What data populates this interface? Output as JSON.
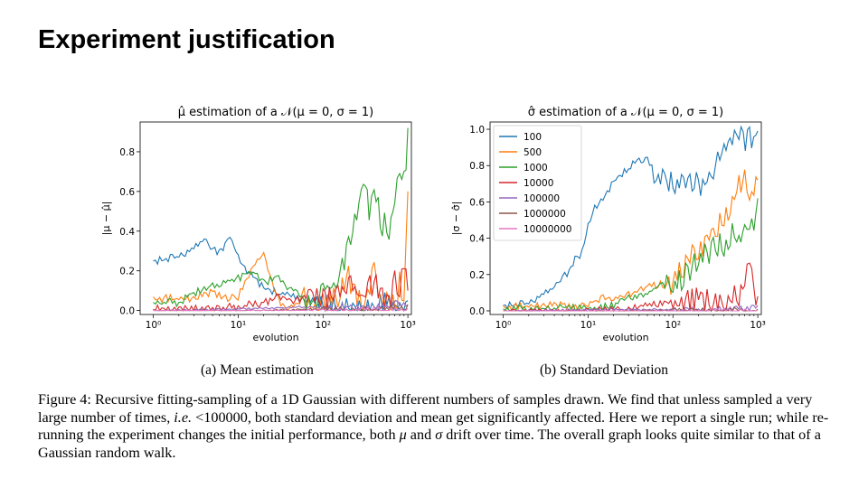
{
  "slide": {
    "title": "Experiment justification"
  },
  "subcaptions": [
    "(a) Mean estimation",
    "(b) Standard Deviation"
  ],
  "caption": {
    "label": "Figure 4:",
    "part1": "Recursive fitting-sampling of a 1D Gaussian with different numbers of samples drawn. We find that unless sampled a very large number of times,",
    "ie": "i.e.",
    "part2": "<100000, both standard deviation and mean get significantly affected. Here we report a single run; while re-running the experiment changes the initial performance, both",
    "mu": "μ",
    "and": "and",
    "sigma": "σ",
    "part3": "drift over time. The overall graph looks quite similar to that of a Gaussian random walk."
  },
  "colors": {
    "100": "#1f77b4",
    "500": "#ff7f0e",
    "1000": "#2ca02c",
    "10000": "#d62728",
    "100000": "#9467bd",
    "1000000": "#8c564b",
    "10000000": "#e377c2"
  },
  "chart_data": [
    {
      "type": "line",
      "title": "μ̂ estimation of a 𝒩(μ = 0, σ = 1)",
      "xlabel": "evolution",
      "ylabel": "|μ − μ̂|",
      "xscale": "log",
      "xlim": [
        0.7,
        1100
      ],
      "ylim": [
        -0.02,
        0.95
      ],
      "xticks": [
        1,
        10,
        100,
        1000
      ],
      "xtick_labels": [
        "10⁰",
        "10¹",
        "10²",
        "10³"
      ],
      "yticks": [
        0.0,
        0.2,
        0.4,
        0.6,
        0.8
      ],
      "ytick_labels": [
        "0.0",
        "0.2",
        "0.4",
        "0.6",
        "0.8"
      ],
      "grid": false,
      "legend": "none",
      "series": [
        {
          "name": "100",
          "x": [
            1,
            2,
            3,
            4,
            5,
            6,
            7,
            8,
            9,
            10,
            12,
            15,
            20,
            30,
            50,
            80,
            100,
            150,
            200,
            300,
            400,
            600,
            800,
            1000
          ],
          "y": [
            0.26,
            0.28,
            0.32,
            0.38,
            0.32,
            0.3,
            0.34,
            0.38,
            0.33,
            0.28,
            0.22,
            0.18,
            0.12,
            0.1,
            0.07,
            0.06,
            0.05,
            0.04,
            0.04,
            0.03,
            0.05,
            0.06,
            0.04,
            0.05
          ]
        },
        {
          "name": "500",
          "x": [
            1,
            3,
            5,
            8,
            10,
            12,
            15,
            20,
            25,
            30,
            40,
            50,
            60,
            80,
            100,
            150,
            200,
            300,
            400,
            500,
            600,
            700,
            800,
            900,
            1000
          ],
          "y": [
            0.07,
            0.07,
            0.1,
            0.07,
            0.08,
            0.15,
            0.23,
            0.3,
            0.15,
            0.06,
            0.02,
            0.04,
            0.1,
            0.02,
            0.06,
            0.12,
            0.2,
            0.06,
            0.26,
            0.05,
            0.12,
            0.02,
            0.18,
            0.05,
            0.6
          ]
        },
        {
          "name": "1000",
          "x": [
            1,
            2,
            3,
            5,
            8,
            10,
            15,
            20,
            30,
            40,
            50,
            60,
            80,
            100,
            150,
            200,
            250,
            300,
            350,
            400,
            500,
            600,
            700,
            800,
            900,
            1000
          ],
          "y": [
            0.05,
            0.05,
            0.1,
            0.13,
            0.16,
            0.17,
            0.22,
            0.15,
            0.18,
            0.12,
            0.1,
            0.06,
            0.08,
            0.15,
            0.18,
            0.35,
            0.5,
            0.68,
            0.55,
            0.62,
            0.48,
            0.45,
            0.6,
            0.75,
            0.68,
            0.92
          ]
        },
        {
          "name": "10000",
          "x": [
            1,
            5,
            10,
            20,
            30,
            50,
            80,
            100,
            150,
            200,
            300,
            400,
            500,
            600,
            700,
            800,
            900,
            1000
          ],
          "y": [
            0.02,
            0.02,
            0.03,
            0.05,
            0.08,
            0.06,
            0.12,
            0.09,
            0.12,
            0.15,
            0.1,
            0.18,
            0.12,
            0.08,
            0.2,
            0.1,
            0.26,
            0.1
          ]
        },
        {
          "name": "100000",
          "x": [
            1,
            10,
            50,
            100,
            200,
            400,
            600,
            800,
            1000
          ],
          "y": [
            0.0,
            0.01,
            0.02,
            0.02,
            0.03,
            0.03,
            0.04,
            0.05,
            0.03
          ]
        },
        {
          "name": "1000000",
          "x": [
            1,
            10,
            100,
            300,
            600,
            1000
          ],
          "y": [
            0.0,
            0.0,
            0.01,
            0.01,
            0.02,
            0.03
          ]
        },
        {
          "name": "10000000",
          "x": [
            1,
            10,
            100,
            1000
          ],
          "y": [
            0.0,
            0.0,
            0.005,
            0.01
          ]
        }
      ]
    },
    {
      "type": "line",
      "title": "σ̂ estimation of a 𝒩(μ = 0, σ = 1)",
      "xlabel": "evolution",
      "ylabel": "|σ − σ̂|",
      "xscale": "log",
      "xlim": [
        0.7,
        1100
      ],
      "ylim": [
        -0.02,
        1.04
      ],
      "xticks": [
        1,
        10,
        100,
        1000
      ],
      "xtick_labels": [
        "10⁰",
        "10¹",
        "10²",
        "10³"
      ],
      "yticks": [
        0.0,
        0.2,
        0.4,
        0.6,
        0.8,
        1.0
      ],
      "ytick_labels": [
        "0.0",
        "0.2",
        "0.4",
        "0.6",
        "0.8",
        "1.0"
      ],
      "grid": false,
      "legend": "upper-left",
      "series": [
        {
          "name": "100",
          "x": [
            1,
            2,
            3,
            4,
            5,
            6,
            7,
            8,
            9,
            10,
            12,
            15,
            20,
            30,
            40,
            50,
            60,
            80,
            100,
            150,
            200,
            300,
            400,
            500,
            600,
            800,
            1000
          ],
          "y": [
            0.04,
            0.05,
            0.1,
            0.15,
            0.2,
            0.22,
            0.3,
            0.3,
            0.38,
            0.48,
            0.58,
            0.62,
            0.72,
            0.8,
            0.84,
            0.84,
            0.8,
            0.76,
            0.74,
            0.78,
            0.72,
            0.8,
            0.92,
            0.96,
            0.98,
            0.99,
            0.99
          ]
        },
        {
          "name": "500",
          "x": [
            1,
            3,
            5,
            8,
            10,
            15,
            20,
            30,
            50,
            80,
            100,
            150,
            200,
            300,
            400,
            500,
            600,
            700,
            800,
            900,
            1000
          ],
          "y": [
            0.03,
            0.04,
            0.04,
            0.03,
            0.05,
            0.08,
            0.07,
            0.1,
            0.14,
            0.16,
            0.2,
            0.3,
            0.38,
            0.45,
            0.55,
            0.65,
            0.72,
            0.8,
            0.65,
            0.7,
            0.72
          ]
        },
        {
          "name": "1000",
          "x": [
            1,
            3,
            5,
            10,
            20,
            30,
            50,
            80,
            100,
            150,
            200,
            300,
            400,
            500,
            600,
            700,
            800,
            900,
            1000
          ],
          "y": [
            0.02,
            0.02,
            0.03,
            0.02,
            0.04,
            0.08,
            0.1,
            0.18,
            0.15,
            0.25,
            0.32,
            0.38,
            0.4,
            0.45,
            0.42,
            0.5,
            0.55,
            0.5,
            0.62
          ]
        },
        {
          "name": "10000",
          "x": [
            1,
            10,
            30,
            50,
            100,
            200,
            300,
            400,
            500,
            600,
            700,
            800,
            900,
            1000
          ],
          "y": [
            0.0,
            0.01,
            0.02,
            0.04,
            0.06,
            0.1,
            0.08,
            0.05,
            0.12,
            0.08,
            0.2,
            0.33,
            0.15,
            0.08
          ]
        },
        {
          "name": "100000",
          "x": [
            1,
            10,
            100,
            500,
            1000
          ],
          "y": [
            0.0,
            0.01,
            0.01,
            0.02,
            0.03
          ]
        },
        {
          "name": "1000000",
          "x": [
            1,
            10,
            100,
            1000
          ],
          "y": [
            0.0,
            0.0,
            0.005,
            0.01
          ]
        },
        {
          "name": "10000000",
          "x": [
            1,
            10,
            100,
            1000
          ],
          "y": [
            0.0,
            0.0,
            0.0,
            0.005
          ]
        }
      ]
    }
  ]
}
